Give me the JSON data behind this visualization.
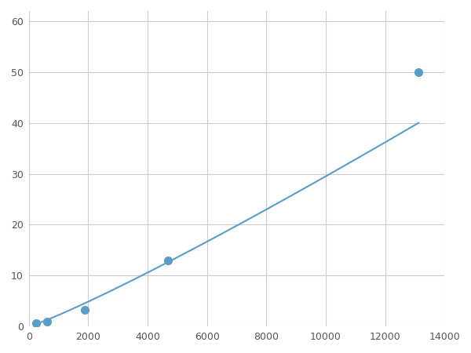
{
  "x_points": [
    250,
    625,
    1875,
    4688,
    13125
  ],
  "y_points": [
    0.7,
    1.0,
    3.2,
    13.0,
    50.0
  ],
  "line_color": "#5b9dc9",
  "marker_color": "#5b9dc9",
  "marker_size": 7,
  "xlim": [
    0,
    14000
  ],
  "ylim": [
    0,
    62
  ],
  "xticks": [
    0,
    2000,
    4000,
    6000,
    8000,
    10000,
    12000,
    14000
  ],
  "yticks": [
    0,
    10,
    20,
    30,
    40,
    50,
    60
  ],
  "grid_color": "#cccccc",
  "background_color": "#ffffff",
  "line_width": 1.5
}
